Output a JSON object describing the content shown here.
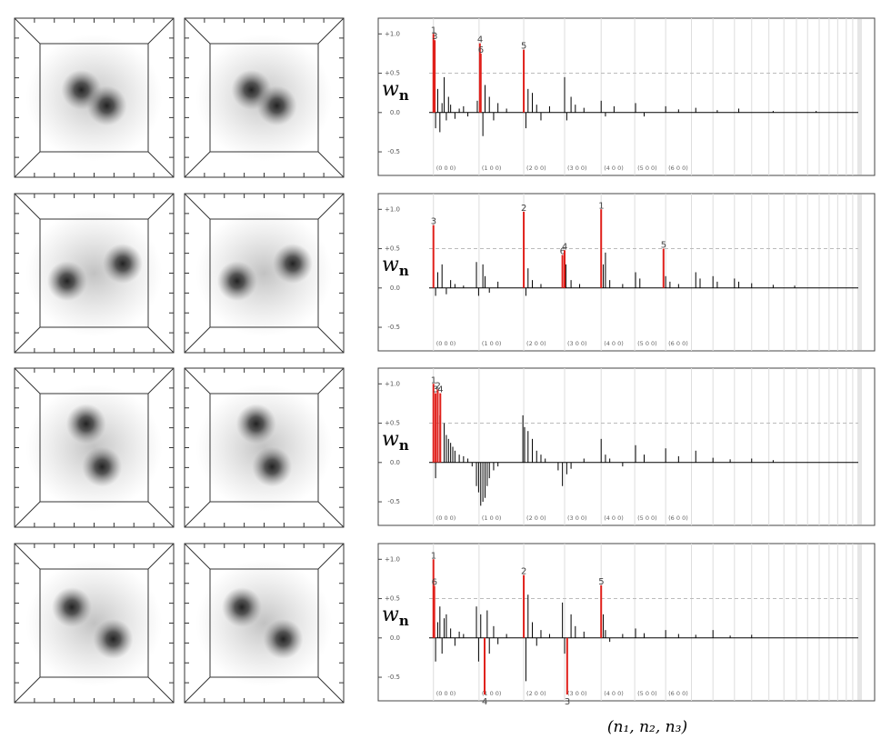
{
  "chart_data": [
    {
      "type": "stem",
      "ylabel": {
        "main": "w",
        "sub": "n"
      },
      "ylim": [
        -0.8,
        1.2
      ],
      "yticks": [
        {
          "value": 1,
          "label": "+1.0"
        },
        {
          "value": 0.5,
          "label": "+0.5"
        },
        {
          "value": 0,
          "label": "0.0"
        },
        -0.5
      ],
      "xlim": [
        0,
        100
      ],
      "xticks": [
        {
          "value": 1,
          "label": "(0 0 0)"
        },
        {
          "value": 11.6,
          "label": "(1 0 0)"
        },
        {
          "value": 22,
          "label": "(2 0 0)"
        },
        {
          "value": 31.5,
          "label": "(3 0 0)"
        },
        {
          "value": 40,
          "label": "(4 0 0)"
        },
        {
          "value": 47.8,
          "label": "(5 0 0)"
        },
        {
          "value": 55,
          "label": "(6 0 0)"
        }
      ],
      "xminor": [
        61,
        66,
        71,
        75,
        79,
        82.5,
        85.4,
        88,
        90.7,
        93,
        95,
        97,
        98.5
      ],
      "hline": 0.5,
      "series": [
        {
          "color": "#000000",
          "x": [
            1.5,
            2,
            2.5,
            3,
            3.5,
            4,
            4.5,
            5,
            6,
            7,
            8,
            9,
            11.2,
            12.5,
            13,
            14,
            15,
            16,
            18,
            22.5,
            23,
            24,
            25,
            26,
            28,
            31.5,
            32,
            33,
            34,
            36,
            40,
            41,
            43,
            48,
            50,
            55,
            58,
            62,
            67,
            72,
            80,
            90
          ],
          "values": [
            -0.2,
            0.3,
            -0.25,
            0.12,
            0.45,
            -0.1,
            0.2,
            0.1,
            -0.08,
            0.05,
            0.08,
            -0.05,
            0.15,
            -0.3,
            0.35,
            0.2,
            -0.1,
            0.12,
            0.05,
            -0.2,
            0.3,
            0.25,
            0.1,
            -0.1,
            0.08,
            0.45,
            -0.1,
            0.2,
            0.1,
            0.06,
            0.15,
            -0.05,
            0.08,
            0.12,
            -0.05,
            0.08,
            0.04,
            0.06,
            0.03,
            0.05,
            0.02,
            0.02
          ]
        },
        {
          "color": "#e0201b",
          "x": [
            1,
            1.3,
            11.8,
            12,
            22
          ],
          "values": [
            1.0,
            0.92,
            0.88,
            0.75,
            0.8
          ],
          "labels": [
            "1",
            "3",
            "4",
            "6",
            "5"
          ]
        }
      ]
    },
    {
      "type": "stem",
      "ylabel": {
        "main": "w",
        "sub": "n"
      },
      "ylim": [
        -0.8,
        1.2
      ],
      "yticks": [
        {
          "value": 1,
          "label": "+1.0"
        },
        {
          "value": 0.5,
          "label": "+0.5"
        },
        {
          "value": 0,
          "label": "0.0"
        },
        -0.5
      ],
      "xlim": [
        0,
        100
      ],
      "xticks": [
        {
          "value": 1,
          "label": "(0 0 0)"
        },
        {
          "value": 11.6,
          "label": "(1 0 0)"
        },
        {
          "value": 22,
          "label": "(2 0 0)"
        },
        {
          "value": 31.5,
          "label": "(3 0 0)"
        },
        {
          "value": 40,
          "label": "(4 0 0)"
        },
        {
          "value": 47.8,
          "label": "(5 0 0)"
        },
        {
          "value": 55,
          "label": "(6 0 0)"
        }
      ],
      "xminor": [
        61,
        66,
        71,
        75,
        79,
        82.5,
        85.4,
        88,
        90.7,
        93,
        95,
        97,
        98.5
      ],
      "hline": 0.5,
      "series": [
        {
          "color": "#000000",
          "x": [
            1.5,
            2,
            3,
            4,
            5,
            6,
            8,
            11,
            11.5,
            12.5,
            13,
            14,
            16,
            22.5,
            23,
            24,
            26,
            31.8,
            33,
            35,
            40.5,
            41,
            42,
            45,
            48,
            49,
            55,
            56,
            58,
            62,
            63,
            66,
            67,
            71,
            72,
            75,
            80,
            85
          ],
          "values": [
            -0.1,
            0.2,
            0.3,
            -0.08,
            0.1,
            0.05,
            0.03,
            0.33,
            -0.1,
            0.3,
            0.15,
            -0.06,
            0.08,
            -0.1,
            0.25,
            0.1,
            0.05,
            0.3,
            0.1,
            0.05,
            0.3,
            0.45,
            0.1,
            0.05,
            0.2,
            0.12,
            0.15,
            0.08,
            0.05,
            0.2,
            0.12,
            0.15,
            0.08,
            0.12,
            0.08,
            0.06,
            0.04,
            0.03
          ]
        },
        {
          "color": "#e0201b",
          "x": [
            1,
            22,
            31,
            31.5,
            40,
            54.5
          ],
          "values": [
            0.8,
            0.97,
            0.42,
            0.48,
            1.0,
            0.5
          ],
          "labels": [
            "3",
            "2",
            "6",
            "4",
            "1",
            "5"
          ]
        }
      ]
    },
    {
      "type": "stem",
      "ylabel": {
        "main": "w",
        "sub": "n"
      },
      "ylim": [
        -0.8,
        1.2
      ],
      "yticks": [
        {
          "value": 1,
          "label": "+1.0"
        },
        {
          "value": 0.5,
          "label": "+0.5"
        },
        {
          "value": 0,
          "label": "0.0"
        },
        -0.5
      ],
      "xlim": [
        0,
        100
      ],
      "xticks": [
        {
          "value": 1,
          "label": "(0 0 0)"
        },
        {
          "value": 11.6,
          "label": "(1 0 0)"
        },
        {
          "value": 22,
          "label": "(2 0 0)"
        },
        {
          "value": 31.5,
          "label": "(3 0 0)"
        },
        {
          "value": 40,
          "label": "(4 0 0)"
        },
        {
          "value": 47.8,
          "label": "(5 0 0)"
        },
        {
          "value": 55,
          "label": "(6 0 0)"
        }
      ],
      "xminor": [
        61,
        66,
        71,
        75,
        79,
        82.5,
        85.4,
        88,
        90.7,
        93,
        95,
        97,
        98.5
      ],
      "hline": 0.5,
      "series": [
        {
          "color": "#000000",
          "x": [
            1.5,
            2.5,
            3.5,
            4,
            4.5,
            5,
            5.5,
            6,
            7,
            8,
            9,
            10,
            11,
            11.5,
            12,
            12.5,
            13,
            13.5,
            14,
            15,
            16,
            21.8,
            22.2,
            23,
            24,
            25,
            26,
            27,
            30,
            31,
            32,
            33,
            36,
            40,
            41,
            42,
            45,
            48,
            50,
            55,
            58,
            62,
            66,
            70,
            75,
            80
          ],
          "values": [
            -0.2,
            0.6,
            0.5,
            0.35,
            0.3,
            0.25,
            0.2,
            0.15,
            0.1,
            0.08,
            0.05,
            -0.05,
            -0.3,
            -0.38,
            -0.55,
            -0.5,
            -0.45,
            -0.3,
            -0.2,
            -0.1,
            -0.05,
            0.6,
            0.45,
            0.4,
            0.3,
            0.15,
            0.1,
            0.05,
            -0.1,
            -0.3,
            -0.15,
            -0.08,
            0.05,
            0.3,
            0.1,
            0.05,
            -0.05,
            0.22,
            0.1,
            0.18,
            0.08,
            0.15,
            0.06,
            0.04,
            0.05,
            0.03
          ]
        },
        {
          "color": "#e0201b",
          "x": [
            1,
            1.5,
            2,
            2.6
          ],
          "values": [
            1.0,
            0.88,
            0.93,
            0.88
          ],
          "labels": [
            "1",
            "3",
            "2",
            "4"
          ]
        }
      ]
    },
    {
      "type": "stem",
      "ylabel": {
        "main": "w",
        "sub": "n"
      },
      "ylim": [
        -0.8,
        1.2
      ],
      "yticks": [
        {
          "value": 1,
          "label": "+1.0"
        },
        {
          "value": 0.5,
          "label": "+0.5"
        },
        {
          "value": 0,
          "label": "0.0"
        },
        -0.5
      ],
      "xlim": [
        0,
        100
      ],
      "xticks": [
        {
          "value": 1,
          "label": "(0 0 0)"
        },
        {
          "value": 11.6,
          "label": "(1 0 0)"
        },
        {
          "value": 22,
          "label": "(2 0 0)"
        },
        {
          "value": 31.5,
          "label": "(3 0 0)"
        },
        {
          "value": 40,
          "label": "(4 0 0)"
        },
        {
          "value": 47.8,
          "label": "(5 0 0)"
        },
        {
          "value": 55,
          "label": "(6 0 0)"
        }
      ],
      "xminor": [
        61,
        66,
        71,
        75,
        79,
        82.5,
        85.4,
        88,
        90.7,
        93,
        95,
        97,
        98.5
      ],
      "hline": 0.5,
      "xlabel": "(n₁, n₂, n₃)",
      "series": [
        {
          "color": "#000000",
          "x": [
            1.5,
            2,
            2.5,
            3,
            3.5,
            4,
            5,
            6,
            7,
            8,
            11,
            11.5,
            12,
            13.5,
            14,
            15,
            16,
            18,
            22.5,
            23,
            24,
            25,
            26,
            28,
            31,
            31.5,
            33,
            34,
            36,
            40.5,
            41,
            42,
            45,
            48,
            50,
            55,
            58,
            62,
            66,
            70,
            75
          ],
          "values": [
            -0.3,
            0.2,
            0.4,
            -0.2,
            0.25,
            0.3,
            0.12,
            -0.1,
            0.08,
            0.05,
            0.4,
            -0.3,
            0.3,
            0.35,
            -0.2,
            0.15,
            -0.08,
            0.05,
            -0.55,
            0.55,
            0.2,
            -0.1,
            0.1,
            0.05,
            0.45,
            -0.2,
            0.3,
            0.15,
            0.08,
            0.3,
            0.1,
            -0.05,
            0.05,
            0.12,
            0.06,
            0.1,
            0.05,
            0.04,
            0.1,
            0.03,
            0.04
          ]
        },
        {
          "color": "#e0201b",
          "x": [
            1,
            1.2,
            12.9,
            22,
            32.1,
            40
          ],
          "values": [
            1.0,
            0.66,
            -0.72,
            0.8,
            -0.72,
            0.67
          ],
          "labels": [
            "1",
            "6",
            "4",
            "2",
            "3",
            "5"
          ]
        }
      ]
    }
  ]
}
